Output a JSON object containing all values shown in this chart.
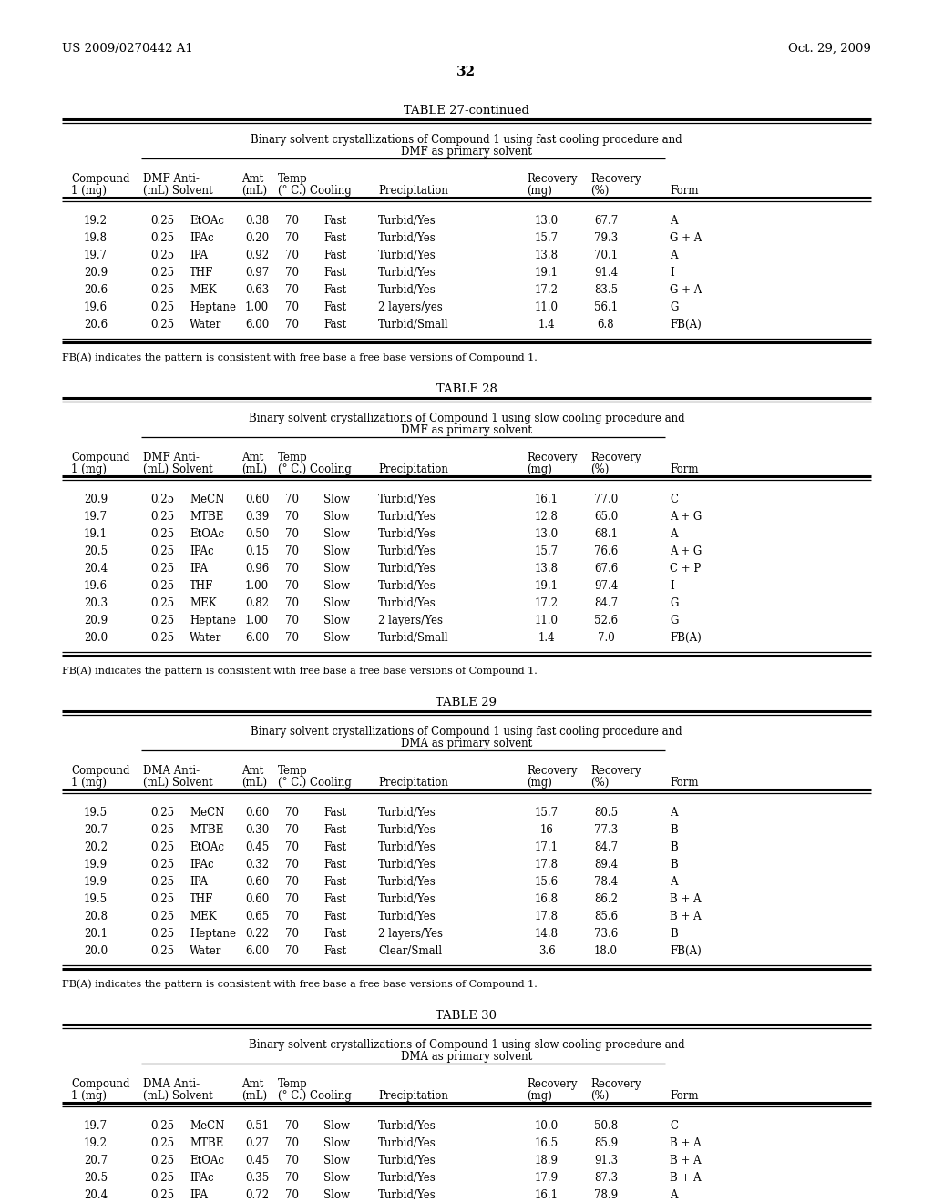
{
  "header_left": "US 2009/0270442 A1",
  "header_right": "Oct. 29, 2009",
  "page_number": "32",
  "background_color": "#ffffff",
  "text_color": "#000000",
  "table27_title": "TABLE 27-continued",
  "table27_subtitle1": "Binary solvent crystallizations of Compound 1 using fast cooling procedure and",
  "table27_subtitle2": "DMF as primary solvent",
  "table27_primary": "DMF",
  "table27_cooling": "Fast",
  "table27_data": [
    [
      "19.2",
      "0.25",
      "EtOAc",
      "0.38",
      "70",
      "Fast",
      "Turbid/Yes",
      "13.0",
      "67.7",
      "A"
    ],
    [
      "19.8",
      "0.25",
      "IPAc",
      "0.20",
      "70",
      "Fast",
      "Turbid/Yes",
      "15.7",
      "79.3",
      "G + A"
    ],
    [
      "19.7",
      "0.25",
      "IPA",
      "0.92",
      "70",
      "Fast",
      "Turbid/Yes",
      "13.8",
      "70.1",
      "A"
    ],
    [
      "20.9",
      "0.25",
      "THF",
      "0.97",
      "70",
      "Fast",
      "Turbid/Yes",
      "19.1",
      "91.4",
      "I"
    ],
    [
      "20.6",
      "0.25",
      "MEK",
      "0.63",
      "70",
      "Fast",
      "Turbid/Yes",
      "17.2",
      "83.5",
      "G + A"
    ],
    [
      "19.6",
      "0.25",
      "Heptane",
      "1.00",
      "70",
      "Fast",
      "2 layers/yes",
      "11.0",
      "56.1",
      "G"
    ],
    [
      "20.6",
      "0.25",
      "Water",
      "6.00",
      "70",
      "Fast",
      "Turbid/Small",
      "1.4",
      "6.8",
      "FB(A)"
    ]
  ],
  "table27_footnote": "FB(A) indicates the pattern is consistent with free base a free base versions of Compound 1.",
  "table28_title": "TABLE 28",
  "table28_subtitle1": "Binary solvent crystallizations of Compound 1 using slow cooling procedure and",
  "table28_subtitle2": "DMF as primary solvent",
  "table28_primary": "DMF",
  "table28_data": [
    [
      "20.9",
      "0.25",
      "MeCN",
      "0.60",
      "70",
      "Slow",
      "Turbid/Yes",
      "16.1",
      "77.0",
      "C"
    ],
    [
      "19.7",
      "0.25",
      "MTBE",
      "0.39",
      "70",
      "Slow",
      "Turbid/Yes",
      "12.8",
      "65.0",
      "A + G"
    ],
    [
      "19.1",
      "0.25",
      "EtOAc",
      "0.50",
      "70",
      "Slow",
      "Turbid/Yes",
      "13.0",
      "68.1",
      "A"
    ],
    [
      "20.5",
      "0.25",
      "IPAc",
      "0.15",
      "70",
      "Slow",
      "Turbid/Yes",
      "15.7",
      "76.6",
      "A + G"
    ],
    [
      "20.4",
      "0.25",
      "IPA",
      "0.96",
      "70",
      "Slow",
      "Turbid/Yes",
      "13.8",
      "67.6",
      "C + P"
    ],
    [
      "19.6",
      "0.25",
      "THF",
      "1.00",
      "70",
      "Slow",
      "Turbid/Yes",
      "19.1",
      "97.4",
      "I"
    ],
    [
      "20.3",
      "0.25",
      "MEK",
      "0.82",
      "70",
      "Slow",
      "Turbid/Yes",
      "17.2",
      "84.7",
      "G"
    ],
    [
      "20.9",
      "0.25",
      "Heptane",
      "1.00",
      "70",
      "Slow",
      "2 layers/Yes",
      "11.0",
      "52.6",
      "G"
    ],
    [
      "20.0",
      "0.25",
      "Water",
      "6.00",
      "70",
      "Slow",
      "Turbid/Small",
      "1.4",
      "7.0",
      "FB(A)"
    ]
  ],
  "table28_footnote": "FB(A) indicates the pattern is consistent with free base a free base versions of Compound 1.",
  "table29_title": "TABLE 29",
  "table29_subtitle1": "Binary solvent crystallizations of Compound 1 using fast cooling procedure and",
  "table29_subtitle2": "DMA as primary solvent",
  "table29_primary": "DMA",
  "table29_data": [
    [
      "19.5",
      "0.25",
      "MeCN",
      "0.60",
      "70",
      "Fast",
      "Turbid/Yes",
      "15.7",
      "80.5",
      "A"
    ],
    [
      "20.7",
      "0.25",
      "MTBE",
      "0.30",
      "70",
      "Fast",
      "Turbid/Yes",
      "16",
      "77.3",
      "B"
    ],
    [
      "20.2",
      "0.25",
      "EtOAc",
      "0.45",
      "70",
      "Fast",
      "Turbid/Yes",
      "17.1",
      "84.7",
      "B"
    ],
    [
      "19.9",
      "0.25",
      "IPAc",
      "0.32",
      "70",
      "Fast",
      "Turbid/Yes",
      "17.8",
      "89.4",
      "B"
    ],
    [
      "19.9",
      "0.25",
      "IPA",
      "0.60",
      "70",
      "Fast",
      "Turbid/Yes",
      "15.6",
      "78.4",
      "A"
    ],
    [
      "19.5",
      "0.25",
      "THF",
      "0.60",
      "70",
      "Fast",
      "Turbid/Yes",
      "16.8",
      "86.2",
      "B + A"
    ],
    [
      "20.8",
      "0.25",
      "MEK",
      "0.65",
      "70",
      "Fast",
      "Turbid/Yes",
      "17.8",
      "85.6",
      "B + A"
    ],
    [
      "20.1",
      "0.25",
      "Heptane",
      "0.22",
      "70",
      "Fast",
      "2 layers/Yes",
      "14.8",
      "73.6",
      "B"
    ],
    [
      "20.0",
      "0.25",
      "Water",
      "6.00",
      "70",
      "Fast",
      "Clear/Small",
      "3.6",
      "18.0",
      "FB(A)"
    ]
  ],
  "table29_footnote": "FB(A) indicates the pattern is consistent with free base a free base versions of Compound 1.",
  "table30_title": "TABLE 30",
  "table30_subtitle1": "Binary solvent crystallizations of Compound 1 using slow cooling procedure and",
  "table30_subtitle2": "DMA as primary solvent",
  "table30_primary": "DMA",
  "table30_data": [
    [
      "19.7",
      "0.25",
      "MeCN",
      "0.51",
      "70",
      "Slow",
      "Turbid/Yes",
      "10.0",
      "50.8",
      "C"
    ],
    [
      "19.2",
      "0.25",
      "MTBE",
      "0.27",
      "70",
      "Slow",
      "Turbid/Yes",
      "16.5",
      "85.9",
      "B + A"
    ],
    [
      "20.7",
      "0.25",
      "EtOAc",
      "0.45",
      "70",
      "Slow",
      "Turbid/Yes",
      "18.9",
      "91.3",
      "B + A"
    ],
    [
      "20.5",
      "0.25",
      "IPAc",
      "0.35",
      "70",
      "Slow",
      "Turbid/Yes",
      "17.9",
      "87.3",
      "B + A"
    ],
    [
      "20.4",
      "0.25",
      "IPA",
      "0.72",
      "70",
      "Slow",
      "Turbid/Yes",
      "16.1",
      "78.9",
      "A"
    ]
  ],
  "table30_footnote": ""
}
